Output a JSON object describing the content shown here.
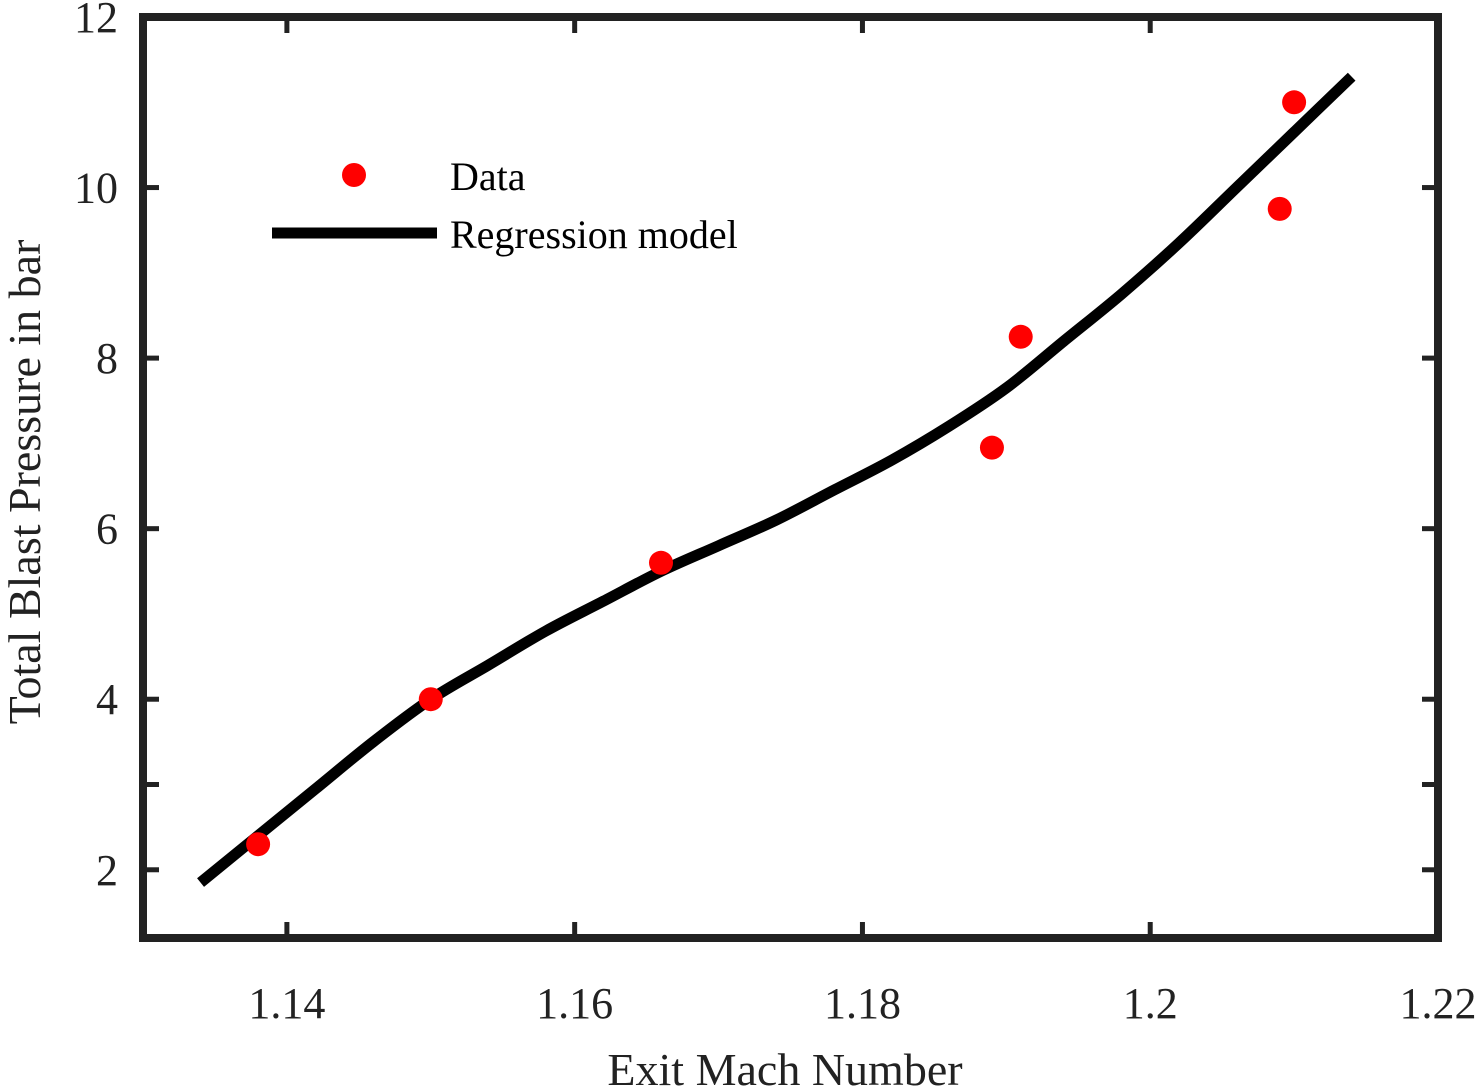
{
  "chart_data": {
    "type": "scatter",
    "title": "",
    "xlabel": "Exit Mach Number",
    "ylabel": "Total Blast Pressure  in bar",
    "xlim": [
      1.13,
      1.22
    ],
    "ylim": [
      1.2,
      12
    ],
    "xticks": [
      1.14,
      1.16,
      1.18,
      1.2,
      1.22
    ],
    "xtick_labels": [
      "1.14",
      "1.16",
      "1.18",
      "1.2",
      "1.22"
    ],
    "yticks": [
      2,
      4,
      6,
      8,
      10,
      12
    ],
    "ytick_labels": [
      "2",
      "4",
      "6",
      "8",
      "10",
      "12"
    ],
    "extra_yticks": [
      3
    ],
    "grid": false,
    "legend_position": "top-left",
    "series": [
      {
        "name": "Data",
        "kind": "scatter",
        "color": "#ff0000",
        "x": [
          1.138,
          1.15,
          1.166,
          1.189,
          1.191,
          1.209,
          1.21
        ],
        "y": [
          2.3,
          4.0,
          5.6,
          6.95,
          8.25,
          9.75,
          11.0
        ]
      },
      {
        "name": "Regression model",
        "kind": "line",
        "color": "#000000",
        "x": [
          1.134,
          1.138,
          1.142,
          1.146,
          1.15,
          1.154,
          1.158,
          1.162,
          1.166,
          1.17,
          1.174,
          1.178,
          1.182,
          1.186,
          1.19,
          1.194,
          1.198,
          1.202,
          1.206,
          1.21,
          1.214
        ],
        "y": [
          1.85,
          2.4,
          2.95,
          3.5,
          4.0,
          4.4,
          4.8,
          5.15,
          5.5,
          5.8,
          6.1,
          6.45,
          6.8,
          7.2,
          7.65,
          8.2,
          8.75,
          9.35,
          10.0,
          10.65,
          11.3
        ]
      }
    ]
  }
}
